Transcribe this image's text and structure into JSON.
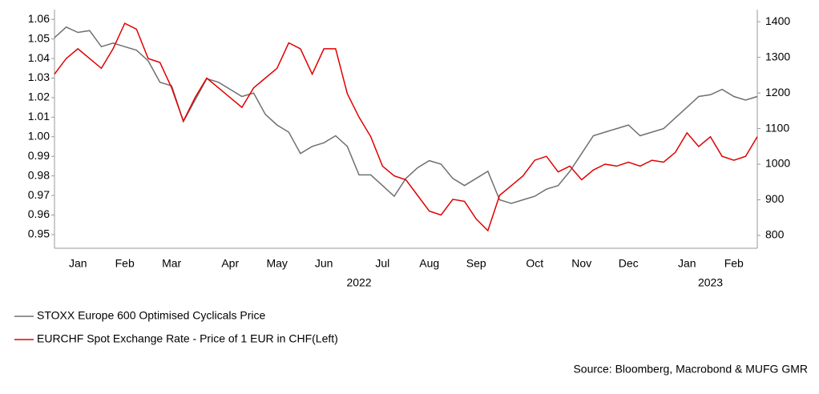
{
  "chart_data": {
    "type": "line",
    "categories": [
      null,
      null,
      "Jan",
      null,
      null,
      null,
      "Feb",
      null,
      null,
      null,
      "Mar",
      null,
      null,
      null,
      null,
      "Apr",
      null,
      null,
      null,
      "May",
      null,
      null,
      null,
      "Jun",
      null,
      null,
      null,
      null,
      "Jul",
      null,
      null,
      null,
      "Aug",
      null,
      null,
      null,
      "Sep",
      null,
      null,
      null,
      null,
      "Oct",
      null,
      null,
      null,
      "Nov",
      null,
      null,
      null,
      "Dec",
      null,
      null,
      null,
      null,
      "Jan",
      null,
      null,
      null,
      "Feb",
      null,
      null
    ],
    "year_categories": [
      null,
      null,
      null,
      null,
      null,
      null,
      null,
      null,
      null,
      null,
      null,
      null,
      null,
      null,
      null,
      null,
      null,
      null,
      null,
      null,
      null,
      null,
      null,
      null,
      null,
      null,
      "2022",
      null,
      null,
      null,
      null,
      null,
      null,
      null,
      null,
      null,
      null,
      null,
      null,
      null,
      null,
      null,
      null,
      null,
      null,
      null,
      null,
      null,
      null,
      null,
      null,
      null,
      null,
      null,
      null,
      null,
      "2023",
      null,
      null,
      null,
      null
    ],
    "series": [
      {
        "name": "STOXX Europe 600 Optimised Cyclicals Price",
        "color": "#707070",
        "axis": "y2",
        "values": [
          1355,
          1385,
          1370,
          1375,
          1330,
          1340,
          1330,
          1320,
          1290,
          1230,
          1220,
          1120,
          1180,
          1240,
          1230,
          1210,
          1190,
          1200,
          1140,
          1110,
          1090,
          1030,
          1050,
          1060,
          1080,
          1050,
          970,
          970,
          940,
          910,
          960,
          990,
          1010,
          1000,
          960,
          940,
          960,
          980,
          900,
          890,
          900,
          910,
          930,
          940,
          980,
          1030,
          1080,
          1090,
          1100,
          1110,
          1080,
          1090,
          1100,
          1130,
          1160,
          1190,
          1195,
          1210,
          1190,
          1180,
          1190
        ]
      },
      {
        "name": "EURCHF Spot Exchange Rate - Price of 1 EUR in CHF(Left)",
        "color": "#e00000",
        "axis": "y",
        "values": [
          1.032,
          1.04,
          1.045,
          1.04,
          1.035,
          1.045,
          1.058,
          1.055,
          1.04,
          1.038,
          1.025,
          1.008,
          1.02,
          1.03,
          1.025,
          1.02,
          1.015,
          1.025,
          1.03,
          1.035,
          1.048,
          1.045,
          1.032,
          1.045,
          1.045,
          1.022,
          1.01,
          1.0,
          0.985,
          0.98,
          0.978,
          0.97,
          0.962,
          0.96,
          0.968,
          0.967,
          0.958,
          0.952,
          0.97,
          0.975,
          0.98,
          0.988,
          0.99,
          0.982,
          0.985,
          0.978,
          0.983,
          0.986,
          0.985,
          0.987,
          0.985,
          0.988,
          0.987,
          0.992,
          1.002,
          0.995,
          1.0,
          0.99,
          0.988,
          0.99,
          1.0
        ]
      }
    ],
    "ylim": [
      0.943,
      1.065
    ],
    "yticks": [
      0.95,
      0.96,
      0.97,
      0.98,
      0.99,
      {
        "value": 1,
        "label": "1.00"
      },
      1.01,
      1.02,
      1.03,
      1.04,
      1.05,
      1.06
    ],
    "y2lim": [
      764,
      1434
    ],
    "y2ticks": [
      800,
      900,
      1000,
      1100,
      1200,
      1300,
      1400
    ],
    "source": "Source: Bloomberg, Macrobond & MUFG GMR"
  }
}
